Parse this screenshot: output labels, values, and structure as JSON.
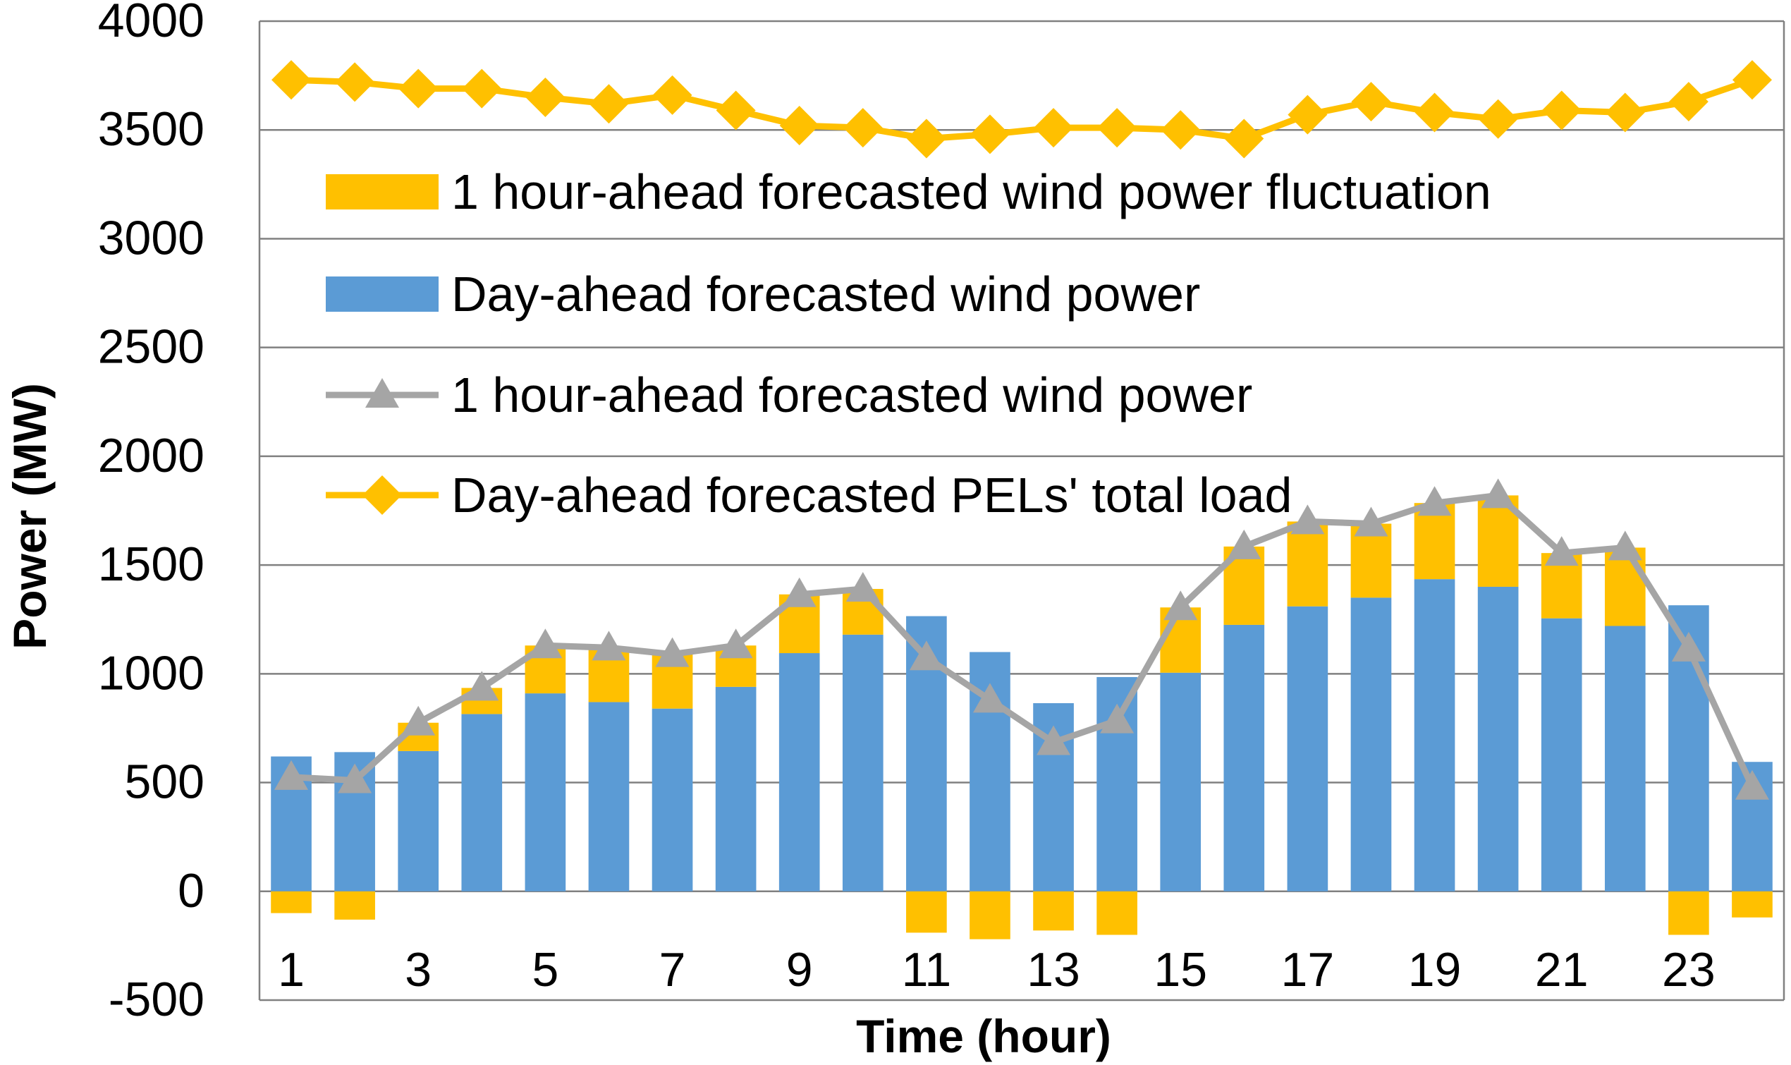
{
  "chart_data": {
    "type": "bar",
    "title": "",
    "xlabel": "Time (hour)",
    "ylabel": "Power (MW)",
    "ylim": [
      -500,
      4000
    ],
    "yticks": [
      -500,
      0,
      500,
      1000,
      1500,
      2000,
      2500,
      3000,
      3500,
      4000
    ],
    "ytick_labels": [
      "-500",
      "0",
      "500",
      "1000",
      "1500",
      "2000",
      "2500",
      "3000",
      "3500",
      "4000"
    ],
    "categories": [
      1,
      2,
      3,
      4,
      5,
      6,
      7,
      8,
      9,
      10,
      11,
      12,
      13,
      14,
      15,
      16,
      17,
      18,
      19,
      20,
      21,
      22,
      23,
      24
    ],
    "xtick_labels": [
      "1",
      "3",
      "5",
      "7",
      "9",
      "11",
      "13",
      "15",
      "17",
      "19",
      "21",
      "23"
    ],
    "grid": true,
    "legend_position": "upper-left inside",
    "colors": {
      "day_ahead_wind": "#5b9bd5",
      "fluctuation": "#ffc000",
      "hour_ahead_wind": "#a5a5a5",
      "load": "#ffc000",
      "grid": "#808080"
    },
    "series": [
      {
        "name": "1 hour-ahead forecasted wind power fluctuation",
        "kind": "stacked-bar",
        "values": [
          -100,
          -130,
          130,
          120,
          220,
          250,
          250,
          190,
          270,
          210,
          -190,
          -220,
          -180,
          -200,
          300,
          360,
          390,
          340,
          350,
          420,
          300,
          360,
          -200,
          -120
        ]
      },
      {
        "name": "Day-ahead forecasted wind power",
        "kind": "bar",
        "values": [
          620,
          640,
          645,
          815,
          910,
          870,
          840,
          940,
          1095,
          1180,
          1265,
          1100,
          865,
          985,
          1005,
          1225,
          1310,
          1350,
          1435,
          1400,
          1255,
          1220,
          1315,
          595
        ]
      },
      {
        "name": "1 hour-ahead forecasted wind power",
        "kind": "line",
        "marker": "triangle",
        "values": [
          525,
          510,
          775,
          935,
          1130,
          1120,
          1090,
          1130,
          1365,
          1390,
          1075,
          880,
          685,
          785,
          1305,
          1585,
          1700,
          1690,
          1785,
          1820,
          1555,
          1580,
          1115,
          480
        ]
      },
      {
        "name": "Day-ahead forecasted PELs' total load",
        "kind": "line",
        "marker": "diamond",
        "values": [
          3730,
          3720,
          3690,
          3690,
          3650,
          3620,
          3660,
          3590,
          3520,
          3510,
          3460,
          3480,
          3510,
          3510,
          3500,
          3460,
          3570,
          3630,
          3580,
          3550,
          3590,
          3580,
          3630,
          3730
        ]
      }
    ]
  }
}
